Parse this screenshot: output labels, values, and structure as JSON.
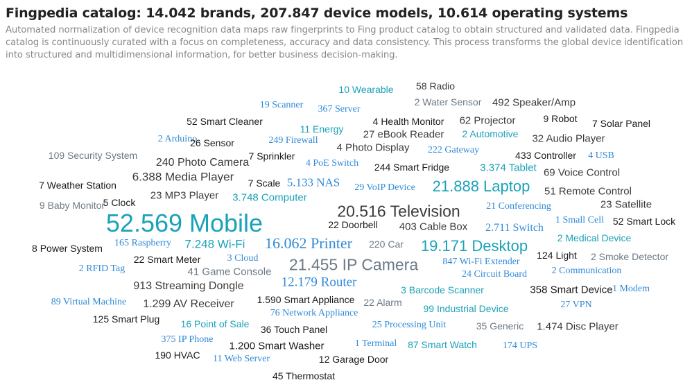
{
  "header": {
    "title": "Fingpedia catalog: 14.042 brands, 207.847 device models, 10.614 operating systems",
    "subtitle": "Automated normalization of device recognition data maps raw fingerprints to Fing product catalog to obtain structured and validated data. Fingpedia catalog is continuously curated with a focus on completeness, accuracy and data consistency. This process transforms the global device identification into structured and multidimensional information, for better business decision-making."
  },
  "colors": {
    "black": "#1a1a1a",
    "dark_gray": "#3a3a3a",
    "slate": "#6c7a86",
    "blue": "#2f8ad8",
    "teal": "#1aa2b8"
  },
  "words": [
    {
      "text": "10 Wearable",
      "color": "#1aa2b8",
      "font": "sans"
    },
    {
      "text": "58 Radio",
      "color": "#3a3a3a",
      "font": "sans"
    },
    {
      "text": "2 Water Sensor",
      "color": "#6c7a86",
      "font": "sans"
    },
    {
      "text": "492 Speaker/Amp",
      "color": "#3a3a3a",
      "font": "sans"
    },
    {
      "text": "19 Scanner",
      "color": "#2f8ad8",
      "font": "serif"
    },
    {
      "text": "367 Server",
      "color": "#2f8ad8",
      "font": "serif"
    },
    {
      "text": "4 Health Monitor",
      "color": "#1a1a1a",
      "font": "sans"
    },
    {
      "text": "62 Projector",
      "color": "#3a3a3a",
      "font": "sans"
    },
    {
      "text": "9 Robot",
      "color": "#1a1a1a",
      "font": "sans"
    },
    {
      "text": "7 Solar Panel",
      "color": "#1a1a1a",
      "font": "sans"
    },
    {
      "text": "52 Smart Cleaner",
      "color": "#1a1a1a",
      "font": "sans"
    },
    {
      "text": "11 Energy",
      "color": "#1aa2b8",
      "font": "sans"
    },
    {
      "text": "27 eBook Reader",
      "color": "#3a3a3a",
      "font": "sans"
    },
    {
      "text": "2 Automotive",
      "color": "#1aa2b8",
      "font": "sans"
    },
    {
      "text": "32 Audio Player",
      "color": "#3a3a3a",
      "font": "sans"
    },
    {
      "text": "2 Arduino",
      "color": "#2f8ad8",
      "font": "serif"
    },
    {
      "text": "26 Sensor",
      "color": "#1a1a1a",
      "font": "sans"
    },
    {
      "text": "249 Firewall",
      "color": "#2f8ad8",
      "font": "serif"
    },
    {
      "text": "4 Photo Display",
      "color": "#3a3a3a",
      "font": "sans"
    },
    {
      "text": "222 Gateway",
      "color": "#2f8ad8",
      "font": "serif"
    },
    {
      "text": "433 Controller",
      "color": "#1a1a1a",
      "font": "sans"
    },
    {
      "text": "4 USB",
      "color": "#2f8ad8",
      "font": "serif"
    },
    {
      "text": "109 Security System",
      "color": "#6c7a86",
      "font": "sans"
    },
    {
      "text": "7 Sprinkler",
      "color": "#1a1a1a",
      "font": "sans"
    },
    {
      "text": "240 Photo Camera",
      "color": "#3a3a3a",
      "font": "sans"
    },
    {
      "text": "4 PoE Switch",
      "color": "#2f8ad8",
      "font": "serif"
    },
    {
      "text": "244 Smart Fridge",
      "color": "#1a1a1a",
      "font": "sans"
    },
    {
      "text": "3.374 Tablet",
      "color": "#1aa2b8",
      "font": "sans"
    },
    {
      "text": "69 Voice Control",
      "color": "#3a3a3a",
      "font": "sans"
    },
    {
      "text": "6.388 Media Player",
      "color": "#3a3a3a",
      "font": "sans"
    },
    {
      "text": "7 Weather Station",
      "color": "#1a1a1a",
      "font": "sans"
    },
    {
      "text": "7 Scale",
      "color": "#1a1a1a",
      "font": "sans"
    },
    {
      "text": "5.133 NAS",
      "color": "#2f8ad8",
      "font": "serif"
    },
    {
      "text": "29 VoIP Device",
      "color": "#2f8ad8",
      "font": "serif"
    },
    {
      "text": "21.888 Laptop",
      "color": "#1aa2b8",
      "font": "sans"
    },
    {
      "text": "51 Remote Control",
      "color": "#3a3a3a",
      "font": "sans"
    },
    {
      "text": "23 MP3 Player",
      "color": "#3a3a3a",
      "font": "sans"
    },
    {
      "text": "3.748 Computer",
      "color": "#1aa2b8",
      "font": "sans"
    },
    {
      "text": "9 Baby Monitor",
      "color": "#6c7a86",
      "font": "sans"
    },
    {
      "text": "5 Clock",
      "color": "#1a1a1a",
      "font": "sans"
    },
    {
      "text": "20.516 Television",
      "color": "#3a3a3a",
      "font": "sans"
    },
    {
      "text": "21 Conferencing",
      "color": "#2f8ad8",
      "font": "serif"
    },
    {
      "text": "23 Satellite",
      "color": "#3a3a3a",
      "font": "sans"
    },
    {
      "text": "52.569 Mobile",
      "color": "#1aa2b8",
      "font": "sans"
    },
    {
      "text": "22 Doorbell",
      "color": "#1a1a1a",
      "font": "sans"
    },
    {
      "text": "403 Cable Box",
      "color": "#3a3a3a",
      "font": "sans"
    },
    {
      "text": "2.711 Switch",
      "color": "#2f8ad8",
      "font": "serif"
    },
    {
      "text": "1 Small Cell",
      "color": "#2f8ad8",
      "font": "serif"
    },
    {
      "text": "52 Smart Lock",
      "color": "#1a1a1a",
      "font": "sans"
    },
    {
      "text": "2 Medical Device",
      "color": "#1aa2b8",
      "font": "sans"
    },
    {
      "text": "8 Power System",
      "color": "#1a1a1a",
      "font": "sans"
    },
    {
      "text": "165 Raspberry",
      "color": "#2f8ad8",
      "font": "serif"
    },
    {
      "text": "7.248 Wi-Fi",
      "color": "#1aa2b8",
      "font": "sans"
    },
    {
      "text": "16.062 Printer",
      "color": "#2f8ad8",
      "font": "serif"
    },
    {
      "text": "220 Car",
      "color": "#6c7a86",
      "font": "sans"
    },
    {
      "text": "19.171 Desktop",
      "color": "#1aa2b8",
      "font": "sans"
    },
    {
      "text": "124 Light",
      "color": "#1a1a1a",
      "font": "sans"
    },
    {
      "text": "2 Smoke Detector",
      "color": "#6c7a86",
      "font": "sans"
    },
    {
      "text": "22 Smart Meter",
      "color": "#1a1a1a",
      "font": "sans"
    },
    {
      "text": "3 Cloud",
      "color": "#2f8ad8",
      "font": "serif"
    },
    {
      "text": "2 RFID Tag",
      "color": "#2f8ad8",
      "font": "serif"
    },
    {
      "text": "41 Game Console",
      "color": "#6c7a86",
      "font": "sans"
    },
    {
      "text": "21.455 IP Camera",
      "color": "#6c7a86",
      "font": "sans"
    },
    {
      "text": "847 Wi-Fi Extender",
      "color": "#2f8ad8",
      "font": "serif"
    },
    {
      "text": "24 Circuit Board",
      "color": "#2f8ad8",
      "font": "serif"
    },
    {
      "text": "2 Communication",
      "color": "#2f8ad8",
      "font": "serif"
    },
    {
      "text": "913 Streaming Dongle",
      "color": "#3a3a3a",
      "font": "sans"
    },
    {
      "text": "12.179 Router",
      "color": "#2f8ad8",
      "font": "serif"
    },
    {
      "text": "3 Barcode Scanner",
      "color": "#1aa2b8",
      "font": "sans"
    },
    {
      "text": "358 Smart Device",
      "color": "#1a1a1a",
      "font": "sans"
    },
    {
      "text": "1 Modem",
      "color": "#2f8ad8",
      "font": "serif"
    },
    {
      "text": "89 Virtual Machine",
      "color": "#2f8ad8",
      "font": "serif"
    },
    {
      "text": "1.299 AV Receiver",
      "color": "#3a3a3a",
      "font": "sans"
    },
    {
      "text": "1.590 Smart Appliance",
      "color": "#1a1a1a",
      "font": "sans"
    },
    {
      "text": "22 Alarm",
      "color": "#6c7a86",
      "font": "sans"
    },
    {
      "text": "99 Industrial Device",
      "color": "#1aa2b8",
      "font": "sans"
    },
    {
      "text": "27 VPN",
      "color": "#2f8ad8",
      "font": "serif"
    },
    {
      "text": "76 Network Appliance",
      "color": "#2f8ad8",
      "font": "serif"
    },
    {
      "text": "125 Smart Plug",
      "color": "#1a1a1a",
      "font": "sans"
    },
    {
      "text": "16 Point of Sale",
      "color": "#1aa2b8",
      "font": "sans"
    },
    {
      "text": "36 Touch Panel",
      "color": "#1a1a1a",
      "font": "sans"
    },
    {
      "text": "25 Processing Unit",
      "color": "#2f8ad8",
      "font": "serif"
    },
    {
      "text": "35 Generic",
      "color": "#6c7a86",
      "font": "sans"
    },
    {
      "text": "1.474 Disc Player",
      "color": "#3a3a3a",
      "font": "sans"
    },
    {
      "text": "375 IP Phone",
      "color": "#2f8ad8",
      "font": "serif"
    },
    {
      "text": "1.200 Smart Washer",
      "color": "#1a1a1a",
      "font": "sans"
    },
    {
      "text": "1 Terminal",
      "color": "#2f8ad8",
      "font": "serif"
    },
    {
      "text": "87 Smart Watch",
      "color": "#1aa2b8",
      "font": "sans"
    },
    {
      "text": "174 UPS",
      "color": "#2f8ad8",
      "font": "serif"
    },
    {
      "text": "190 HVAC",
      "color": "#1a1a1a",
      "font": "sans"
    },
    {
      "text": "11 Web Server",
      "color": "#2f8ad8",
      "font": "serif"
    },
    {
      "text": "12 Garage Door",
      "color": "#1a1a1a",
      "font": "sans"
    },
    {
      "text": "45 Thermostat",
      "color": "#1a1a1a",
      "font": "sans"
    }
  ]
}
